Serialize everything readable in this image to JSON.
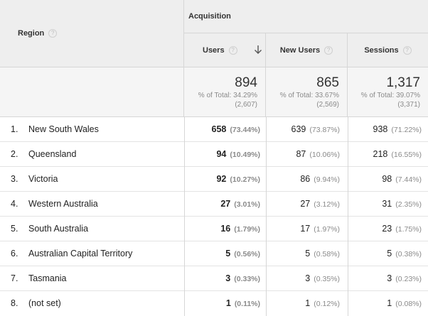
{
  "header": {
    "region_label": "Region",
    "group_label": "Acquisition",
    "columns": [
      "Users",
      "New Users",
      "Sessions"
    ],
    "help_glyph": "?",
    "sort": {
      "column": "Users",
      "direction": "descending",
      "icon": "arrow-down-icon"
    }
  },
  "totals": [
    {
      "value": "894",
      "pct_line": "% of Total: 34.29%",
      "total_line": "(2,607)"
    },
    {
      "value": "865",
      "pct_line": "% of Total: 33.67%",
      "total_line": "(2,569)"
    },
    {
      "value": "1,317",
      "pct_line": "% of Total: 39.07%",
      "total_line": "(3,371)"
    }
  ],
  "rows": [
    {
      "idx": "1.",
      "region": "New South Wales",
      "users": "658",
      "users_pct": "(73.44%)",
      "new_users": "639",
      "new_users_pct": "(73.87%)",
      "sessions": "938",
      "sessions_pct": "(71.22%)"
    },
    {
      "idx": "2.",
      "region": "Queensland",
      "users": "94",
      "users_pct": "(10.49%)",
      "new_users": "87",
      "new_users_pct": "(10.06%)",
      "sessions": "218",
      "sessions_pct": "(16.55%)"
    },
    {
      "idx": "3.",
      "region": "Victoria",
      "users": "92",
      "users_pct": "(10.27%)",
      "new_users": "86",
      "new_users_pct": "(9.94%)",
      "sessions": "98",
      "sessions_pct": "(7.44%)"
    },
    {
      "idx": "4.",
      "region": "Western Australia",
      "users": "27",
      "users_pct": "(3.01%)",
      "new_users": "27",
      "new_users_pct": "(3.12%)",
      "sessions": "31",
      "sessions_pct": "(2.35%)"
    },
    {
      "idx": "5.",
      "region": "South Australia",
      "users": "16",
      "users_pct": "(1.79%)",
      "new_users": "17",
      "new_users_pct": "(1.97%)",
      "sessions": "23",
      "sessions_pct": "(1.75%)"
    },
    {
      "idx": "6.",
      "region": "Australian Capital Territory",
      "users": "5",
      "users_pct": "(0.56%)",
      "new_users": "5",
      "new_users_pct": "(0.58%)",
      "sessions": "5",
      "sessions_pct": "(0.38%)"
    },
    {
      "idx": "7.",
      "region": "Tasmania",
      "users": "3",
      "users_pct": "(0.33%)",
      "new_users": "3",
      "new_users_pct": "(0.35%)",
      "sessions": "3",
      "sessions_pct": "(0.23%)"
    },
    {
      "idx": "8.",
      "region": "(not set)",
      "users": "1",
      "users_pct": "(0.11%)",
      "new_users": "1",
      "new_users_pct": "(0.12%)",
      "sessions": "1",
      "sessions_pct": "(0.08%)"
    }
  ]
}
